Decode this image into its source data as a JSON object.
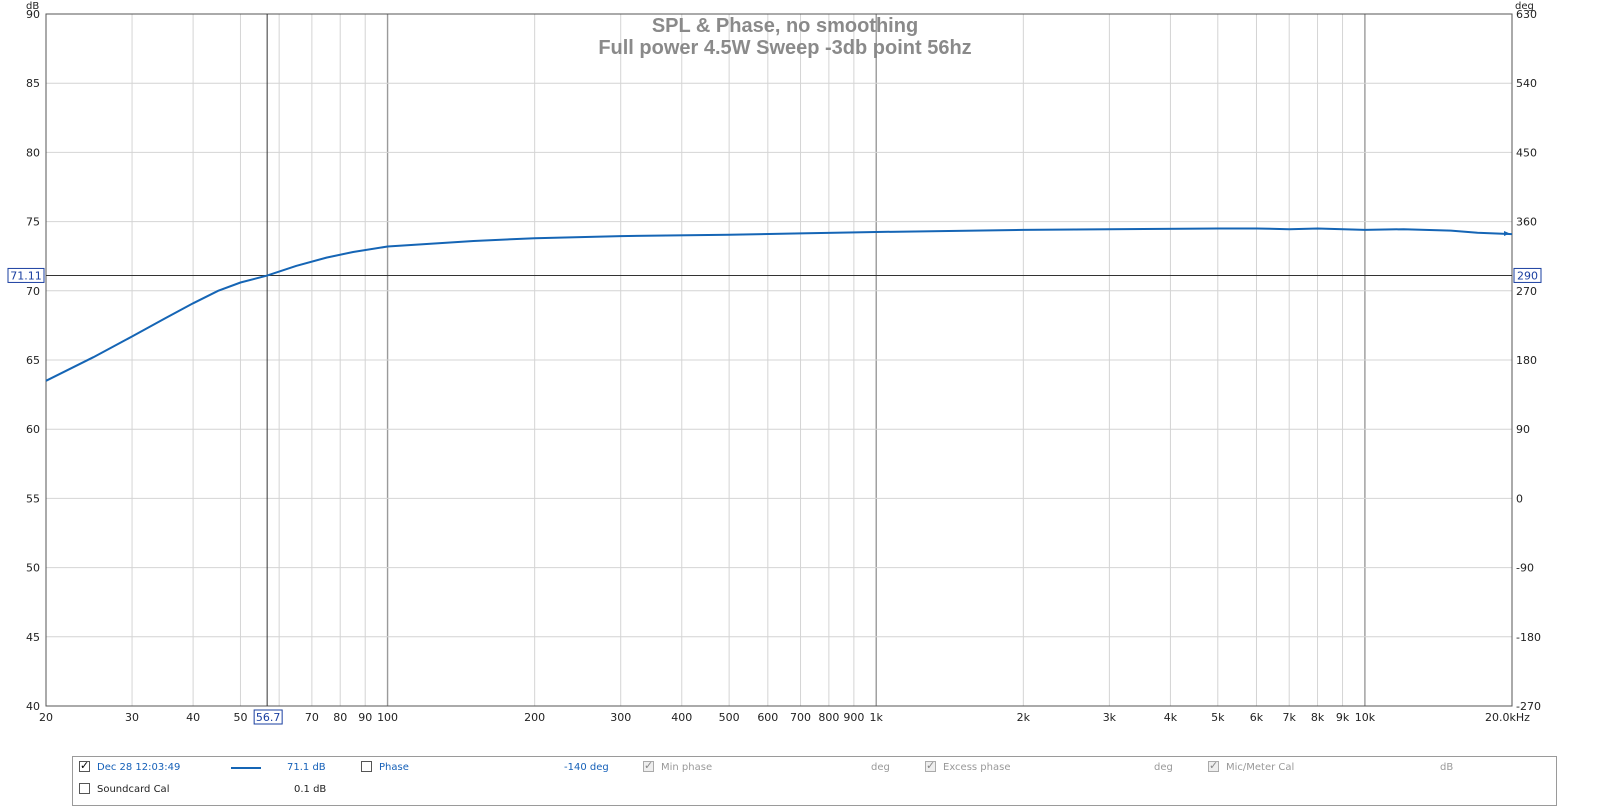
{
  "chart_data": {
    "type": "line",
    "title": "SPL & Phase, no smoothing",
    "subtitle": "Full power 4.5W Sweep -3db point 56hz",
    "ylabel": "dB",
    "y2label": "deg",
    "x_unit_label": "20.0kHz",
    "xscale": "log",
    "xlim": [
      20,
      20000
    ],
    "ylim": [
      40,
      90
    ],
    "y2lim": [
      -270,
      630
    ],
    "grid": true,
    "x_ticks": [
      {
        "v": 20,
        "label": "20"
      },
      {
        "v": 30,
        "label": "30"
      },
      {
        "v": 40,
        "label": "40"
      },
      {
        "v": 50,
        "label": "50"
      },
      {
        "v": 70,
        "label": "70"
      },
      {
        "v": 80,
        "label": "80"
      },
      {
        "v": 90,
        "label": "90"
      },
      {
        "v": 100,
        "label": "100"
      },
      {
        "v": 200,
        "label": "200"
      },
      {
        "v": 300,
        "label": "300"
      },
      {
        "v": 400,
        "label": "400"
      },
      {
        "v": 500,
        "label": "500"
      },
      {
        "v": 600,
        "label": "600"
      },
      {
        "v": 700,
        "label": "700"
      },
      {
        "v": 800,
        "label": "800"
      },
      {
        "v": 900,
        "label": "900"
      },
      {
        "v": 1000,
        "label": "1k"
      },
      {
        "v": 2000,
        "label": "2k"
      },
      {
        "v": 3000,
        "label": "3k"
      },
      {
        "v": 4000,
        "label": "4k"
      },
      {
        "v": 5000,
        "label": "5k"
      },
      {
        "v": 6000,
        "label": "6k"
      },
      {
        "v": 7000,
        "label": "7k"
      },
      {
        "v": 8000,
        "label": "8k"
      },
      {
        "v": 9000,
        "label": "9k"
      },
      {
        "v": 10000,
        "label": "10k"
      }
    ],
    "y_ticks": [
      {
        "v": 40,
        "label": "40"
      },
      {
        "v": 45,
        "label": "45"
      },
      {
        "v": 50,
        "label": "50"
      },
      {
        "v": 55,
        "label": "55"
      },
      {
        "v": 60,
        "label": "60"
      },
      {
        "v": 65,
        "label": "65"
      },
      {
        "v": 70,
        "label": "70"
      },
      {
        "v": 75,
        "label": "75"
      },
      {
        "v": 80,
        "label": "80"
      },
      {
        "v": 85,
        "label": "85"
      },
      {
        "v": 90,
        "label": "90"
      }
    ],
    "y2_ticks": [
      {
        "v": -270,
        "label": "-270"
      },
      {
        "v": -180,
        "label": "-180"
      },
      {
        "v": -90,
        "label": "-90"
      },
      {
        "v": 0,
        "label": "0"
      },
      {
        "v": 90,
        "label": "90"
      },
      {
        "v": 180,
        "label": "180"
      },
      {
        "v": 270,
        "label": "270"
      },
      {
        "v": 360,
        "label": "360"
      },
      {
        "v": 450,
        "label": "450"
      },
      {
        "v": 540,
        "label": "540"
      },
      {
        "v": 630,
        "label": "630"
      }
    ],
    "cursor": {
      "x": 56.7,
      "x_label": "56.7",
      "y": 71.11,
      "y_label": "71.11",
      "y2_label": "290"
    },
    "series": [
      {
        "color": "#1565b5",
        "x": [
          20,
          25,
          30,
          35,
          40,
          45,
          50,
          56.7,
          65,
          75,
          85,
          100,
          150,
          200,
          300,
          500,
          700,
          1000,
          2000,
          3000,
          5000,
          6000,
          7000,
          8000,
          10000,
          12000,
          15000,
          17000,
          20000
        ],
        "y": [
          63.5,
          65.2,
          66.7,
          68.0,
          69.1,
          70.0,
          70.6,
          71.1,
          71.8,
          72.4,
          72.8,
          73.2,
          73.6,
          73.8,
          73.95,
          74.05,
          74.15,
          74.25,
          74.4,
          74.45,
          74.5,
          74.5,
          74.45,
          74.5,
          74.4,
          74.45,
          74.35,
          74.2,
          74.1
        ]
      }
    ]
  },
  "legend": {
    "row1": {
      "checked_glyph": "✓",
      "name": "Dec 28 12:03:49",
      "value": "71.1 dB",
      "phase_label": "Phase",
      "phase_value": "-140 deg",
      "min_phase_label": "Min phase",
      "min_phase_unit": "deg",
      "excess_phase_label": "Excess phase",
      "excess_phase_unit": "deg",
      "mic_cal_label": "Mic/Meter Cal",
      "mic_cal_unit": "dB"
    },
    "row2": {
      "soundcard_label": "Soundcard Cal",
      "soundcard_value": "0.1 dB"
    },
    "colors": {
      "series": "#1565b5"
    }
  }
}
